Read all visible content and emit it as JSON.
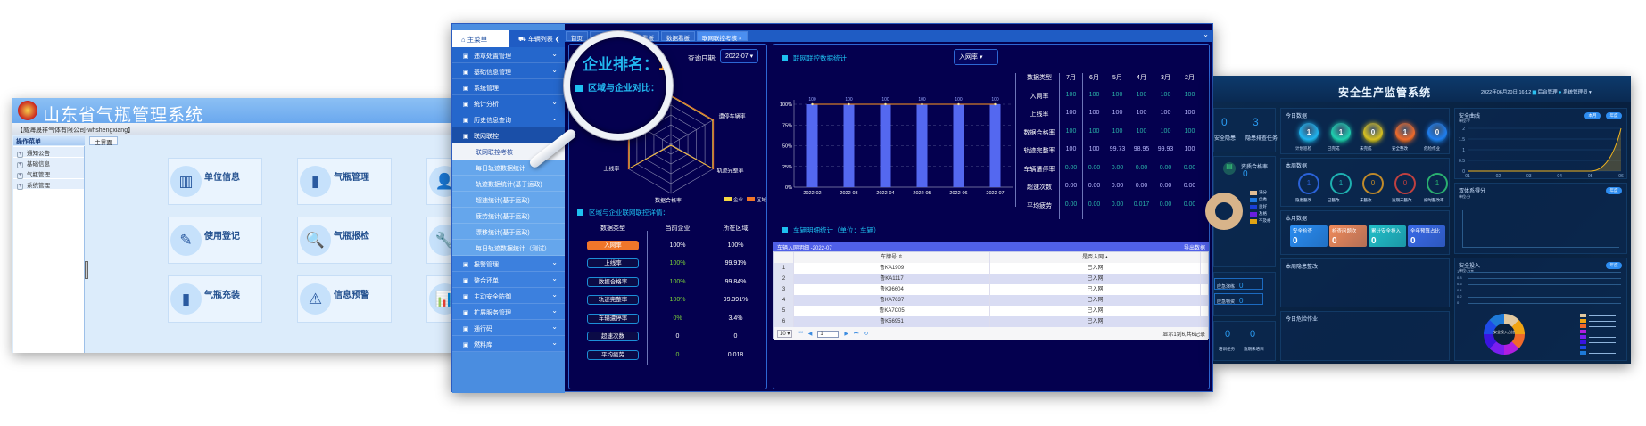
{
  "left_app": {
    "title": "山东省气瓶管理系统",
    "account": "【威海晟祥气体有限公司-whshengxiang】",
    "sidebar_header": "操作菜单",
    "sidebar_items": [
      "通知公告",
      "基础信息",
      "气瓶管理",
      "系统管理"
    ],
    "tab": "主界面",
    "cards": [
      {
        "label": "单位信息",
        "icon": "building-icon",
        "glyph": "▥"
      },
      {
        "label": "气瓶管理",
        "icon": "gas-cylinder-icon",
        "glyph": "▮"
      },
      {
        "label": "",
        "icon": "users-icon",
        "glyph": "👤"
      },
      {
        "label": "使用登记",
        "icon": "form-edit-icon",
        "glyph": "✎"
      },
      {
        "label": "气瓶报检",
        "icon": "inspect-document-icon",
        "glyph": "🔍"
      },
      {
        "label": "",
        "icon": "wrench-icon",
        "glyph": "🔧"
      },
      {
        "label": "气瓶充装",
        "icon": "cylinder-fill-icon",
        "glyph": "▮"
      },
      {
        "label": "信息预警",
        "icon": "alarm-light-icon",
        "glyph": "⚠"
      },
      {
        "label": "",
        "icon": "bar-chart-icon",
        "glyph": "📊"
      }
    ]
  },
  "mid_app": {
    "menu_home": "主菜单",
    "menu_vehicles": "车辆列表",
    "menu_top": [
      {
        "label": "违章处置管理",
        "chev": true
      },
      {
        "label": "基础信息管理",
        "chev": true
      },
      {
        "label": "系统管理",
        "chev": false
      },
      {
        "label": "统计分析",
        "chev": true
      },
      {
        "label": "历史信息查询",
        "chev": true
      },
      {
        "label": "联网联控",
        "chev": false
      }
    ],
    "menu_sub": [
      "联网联控考核",
      "每日轨迹数据统计",
      "轨迹数据统计(基于运政)",
      "超速统计(基于运政)",
      "疲劳统计(基于运政)",
      "漂移统计(基于运政)",
      "每日轨迹数据统计（测试）"
    ],
    "menu_selected": "联网联控考核",
    "menu_lower": [
      "报警管理",
      "整合还单",
      "主动安全防御",
      "扩展服务管理",
      "通行码",
      "燃料库"
    ],
    "tabs": [
      "首页",
      "监控大屏",
      "数据看板",
      "数据看板",
      "联网联控考核 ×"
    ],
    "rank_label": "企业排名：",
    "rank_value": "1",
    "compare_title": "区域与企业对比：",
    "query_date_label": "查询日期:",
    "query_date": "2022-07 ▾",
    "radar_labels": [
      "遭停车辆率",
      "轨迹完整率",
      "数据合格率",
      "上线率"
    ],
    "legend": [
      {
        "name": "企业",
        "color": "#f5d742"
      },
      {
        "name": "区域",
        "color": "#f0762a"
      }
    ],
    "detail_title": "区域与企业联网联控详情：",
    "detail_headers": [
      "数据类型",
      "当前企业",
      "所在区域"
    ],
    "detail_rows": [
      {
        "type": "入网率",
        "company": "100%",
        "region": "100%",
        "green": false
      },
      {
        "type": "上线率",
        "company": "100%",
        "region": "99.91%",
        "green": true
      },
      {
        "type": "数据合格率",
        "company": "100%",
        "region": "99.84%",
        "green": true
      },
      {
        "type": "轨迹完整率",
        "company": "100%",
        "region": "99.391%",
        "green": true
      },
      {
        "type": "车辆遭停率",
        "company": "0%",
        "region": "3.4%",
        "green": true
      },
      {
        "type": "超速次数",
        "company": "0",
        "region": "0",
        "green": false
      },
      {
        "type": "平均疲劳",
        "company": "0",
        "region": "0.018",
        "green": true
      }
    ],
    "stats_title": "联网联控数据统计",
    "stats_select": "入网率 ▾",
    "stats_table": {
      "headers": [
        "数据类型",
        "7月",
        "6月",
        "5月",
        "4月",
        "3月",
        "2月"
      ],
      "rows": [
        {
          "label": "入网率",
          "values": [
            "100",
            "100",
            "100",
            "100",
            "100",
            "100"
          ],
          "tone": "teal"
        },
        {
          "label": "上线率",
          "values": [
            "100",
            "100",
            "100",
            "100",
            "100",
            "100"
          ],
          "tone": "lav"
        },
        {
          "label": "数据合格率",
          "values": [
            "100",
            "100",
            "100",
            "100",
            "100",
            "100"
          ],
          "tone": "teal"
        },
        {
          "label": "轨迹完整率",
          "values": [
            "100",
            "100",
            "99.73",
            "98.95",
            "99.93",
            "100"
          ],
          "tone": "lav"
        },
        {
          "label": "车辆遭停率",
          "values": [
            "0.00",
            "0.00",
            "0.00",
            "0.00",
            "0.00",
            "0.00"
          ],
          "tone": "teal"
        },
        {
          "label": "超速次数",
          "values": [
            "0.00",
            "0.00",
            "0.00",
            "0.00",
            "0.00",
            "0.00"
          ],
          "tone": "lav"
        },
        {
          "label": "平均疲劳",
          "values": [
            "0.00",
            "0.00",
            "0.00",
            "0.017",
            "0.00",
            "0.00"
          ],
          "tone": "teal"
        }
      ]
    },
    "vehicle_title": "车辆明细统计（单位：车辆）",
    "vehicle_table_title": "车辆入网明细 -2022-07",
    "export": "导出数据",
    "vehicle_headers": [
      "车牌号 ⇕",
      "是否入网 ▴"
    ],
    "vehicles": [
      {
        "no": "1",
        "plate": "鲁KA1909",
        "status": "已入网"
      },
      {
        "no": "2",
        "plate": "鲁KA1117",
        "status": "已入网"
      },
      {
        "no": "3",
        "plate": "鲁K96604",
        "status": "已入网"
      },
      {
        "no": "4",
        "plate": "鲁KA7637",
        "status": "已入网"
      },
      {
        "no": "5",
        "plate": "鲁KA7C05",
        "status": "已入网"
      },
      {
        "no": "6",
        "plate": "鲁K56951",
        "status": "已入网"
      }
    ],
    "pager": {
      "page_size": "10 ▾",
      "page": "1",
      "summary": "显示1到6,共6记录"
    }
  },
  "chart_data": {
    "type": "bar",
    "categories": [
      "2022-02",
      "2022-03",
      "2022-04",
      "2022-05",
      "2022-06",
      "2022-07"
    ],
    "values": [
      100,
      100,
      100,
      100,
      100,
      100
    ],
    "data_labels": [
      "100",
      "100",
      "100",
      "100",
      "100",
      "100"
    ],
    "line_values": [
      100,
      100,
      100,
      100,
      100,
      100
    ],
    "yticks": [
      "0%",
      "25%",
      "50%",
      "75%",
      "100%"
    ],
    "ylim": [
      0,
      100
    ],
    "bar_color": "#5468f0",
    "line_color": "#d07a28",
    "grid": true
  },
  "right_app": {
    "title": "安全生产监管系统",
    "datetime": "2022年06月20日 16:12",
    "backend": "后台管理",
    "user": "系统管理员",
    "left_counts": [
      {
        "value": "0",
        "label": "安全隐患"
      },
      {
        "value": "3",
        "label": "隐患排查任务"
      }
    ],
    "qualified_label": "资质合格率",
    "qualified_value": "0",
    "donut_legend": [
      {
        "name": "满分",
        "color": "#e2bd94"
      },
      {
        "name": "优秀",
        "color": "#1e78e0"
      },
      {
        "name": "良好",
        "color": "#1a3fd8"
      },
      {
        "name": "及格",
        "color": "#6a1ee0"
      },
      {
        "name": "不及格",
        "color": "#e0a414"
      }
    ],
    "today_title": "今日数据",
    "today": [
      {
        "value": "1",
        "label": "计划巡检",
        "color": "#1eb4f0"
      },
      {
        "value": "1",
        "label": "已完成",
        "color": "#1ed0b0"
      },
      {
        "value": "0",
        "label": "未完成",
        "color": "#d8c020"
      },
      {
        "value": "1",
        "label": "安全整改",
        "color": "#f06a2a"
      },
      {
        "value": "0",
        "label": "危险作业",
        "color": "#1e7ef0"
      }
    ],
    "week_title": "本周数据",
    "week": [
      {
        "value": "1",
        "label": "隐患整改",
        "color": "#2a62d8"
      },
      {
        "value": "1",
        "label": "已整改",
        "color": "#1eb0b0"
      },
      {
        "value": "0",
        "label": "未整改",
        "color": "#c08a2a"
      },
      {
        "value": "0",
        "label": "逾期未整改",
        "color": "#c04040"
      },
      {
        "value": "1",
        "label": "按时整改率",
        "color": "#2ab070"
      }
    ],
    "month_title": "本月数据",
    "month": [
      {
        "value": "0",
        "label": "安全检查",
        "color": "#2a8cf0"
      },
      {
        "value": "0",
        "label": "检查问题次",
        "color": "#f08a5a"
      },
      {
        "value": "0",
        "label": "累计安全投入",
        "color": "#22c0c8"
      },
      {
        "value": "0",
        "label": "全年预算占比",
        "color": "#3a6ae8"
      }
    ],
    "misc": [
      {
        "label": "应急演练",
        "value": "0"
      },
      {
        "label": "应急物资",
        "value": "0"
      }
    ],
    "bottom_counts": [
      {
        "value": "0",
        "label": "培训任务"
      },
      {
        "value": "0",
        "label": "逾期未培训"
      }
    ],
    "week_fix_title": "本周隐患整改",
    "today_work_title": "今日危险作业",
    "curve_title": "安全曲线",
    "curve_unit": "单位:个",
    "curve_buttons": [
      "本月",
      "年度"
    ],
    "curve_chart": {
      "x": [
        "01",
        "02",
        "03",
        "04",
        "05",
        "06"
      ],
      "y": [
        0,
        0,
        0,
        0,
        0,
        2
      ],
      "yticks": [
        "0",
        "0.5",
        "1",
        "1.5",
        "2"
      ],
      "color": "#f0b41e"
    },
    "score_title": "双体系得分",
    "score_unit": "单位:分",
    "score_button": "年度",
    "invest_title": "安全投入",
    "invest_unit": "单位:万元",
    "invest_button": "年度",
    "invest_yticks": [
      "0",
      "0.2",
      "0.4",
      "0.6",
      "0.8",
      "1"
    ],
    "invest_center": "安全投入占比",
    "invest_colors": [
      "#e2c9a0",
      "#f0a414",
      "#f06a2a",
      "#b01ee0",
      "#7a1ef0",
      "#3a14e0",
      "#1e4ae8",
      "#1e7ad8"
    ]
  }
}
